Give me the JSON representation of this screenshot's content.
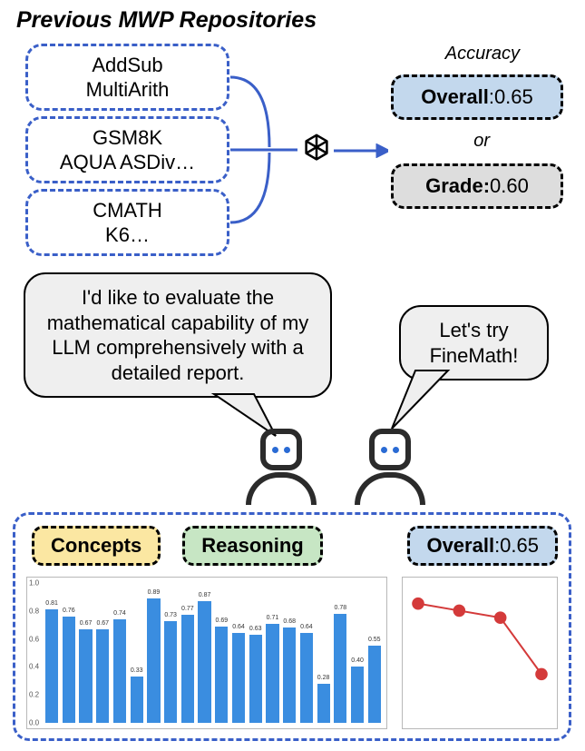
{
  "title": "Previous MWP Repositories",
  "repos": {
    "group1_line1": "AddSub",
    "group1_line2": "MultiArith",
    "group2_line1": "GSM8K",
    "group2_line2": "AQUA ASDiv…",
    "group3_line1": "CMATH",
    "group3_line2": "K6…"
  },
  "accuracy_label": "Accuracy",
  "result_overall_label": "Overall",
  "result_overall_value": ":0.65",
  "or_label": "or",
  "result_grade_label": "Grade:",
  "result_grade_value": "0.60",
  "speech1": "I'd like to evaluate the mathematical capability of my LLM comprehensively with a detailed report.",
  "speech2": "Let's try FineMath!",
  "tags": {
    "concepts": "Concepts",
    "reasoning": "Reasoning",
    "overall_label": "Overall",
    "overall_value": ":0.65"
  },
  "colors": {
    "dash_blue": "#3a5fc8",
    "bar_blue": "#3a8de0",
    "line_red": "#d43a3a",
    "box_blue_bg": "#c3d8ed",
    "box_grey_bg": "#dddddd",
    "tag_yellow": "#fbe7a2",
    "tag_green": "#c7e6c4",
    "bubble_bg": "#efefef"
  },
  "barchart": {
    "type": "bar",
    "ylim": [
      0,
      1.0
    ],
    "yticks": [
      0,
      0.2,
      0.4,
      0.6,
      0.8,
      1.0
    ],
    "bar_color": "#3a8de0",
    "label_fontsize": 7,
    "values": [
      0.81,
      0.76,
      0.67,
      0.67,
      0.74,
      0.33,
      0.89,
      0.73,
      0.77,
      0.87,
      0.69,
      0.64,
      0.63,
      0.71,
      0.68,
      0.64,
      0.28,
      0.78,
      0.4,
      0.55
    ],
    "value_labels": [
      "0.81",
      "0.76",
      "0.67",
      "0.67",
      "0.74",
      "0.33",
      "0.89",
      "0.73",
      "0.77",
      "0.87",
      "0.69",
      "0.64",
      "0.63",
      "0.71",
      "0.68",
      "0.64",
      "0.28",
      "0.78",
      "0.40",
      "0.55"
    ]
  },
  "linechart": {
    "type": "line",
    "ylim": [
      0.5,
      0.85
    ],
    "xpoints": [
      0,
      1,
      2,
      3
    ],
    "ypoints": [
      0.82,
      0.8,
      0.78,
      0.62
    ],
    "color": "#d43a3a",
    "marker": "circle",
    "marker_size": 4,
    "line_width": 2
  }
}
